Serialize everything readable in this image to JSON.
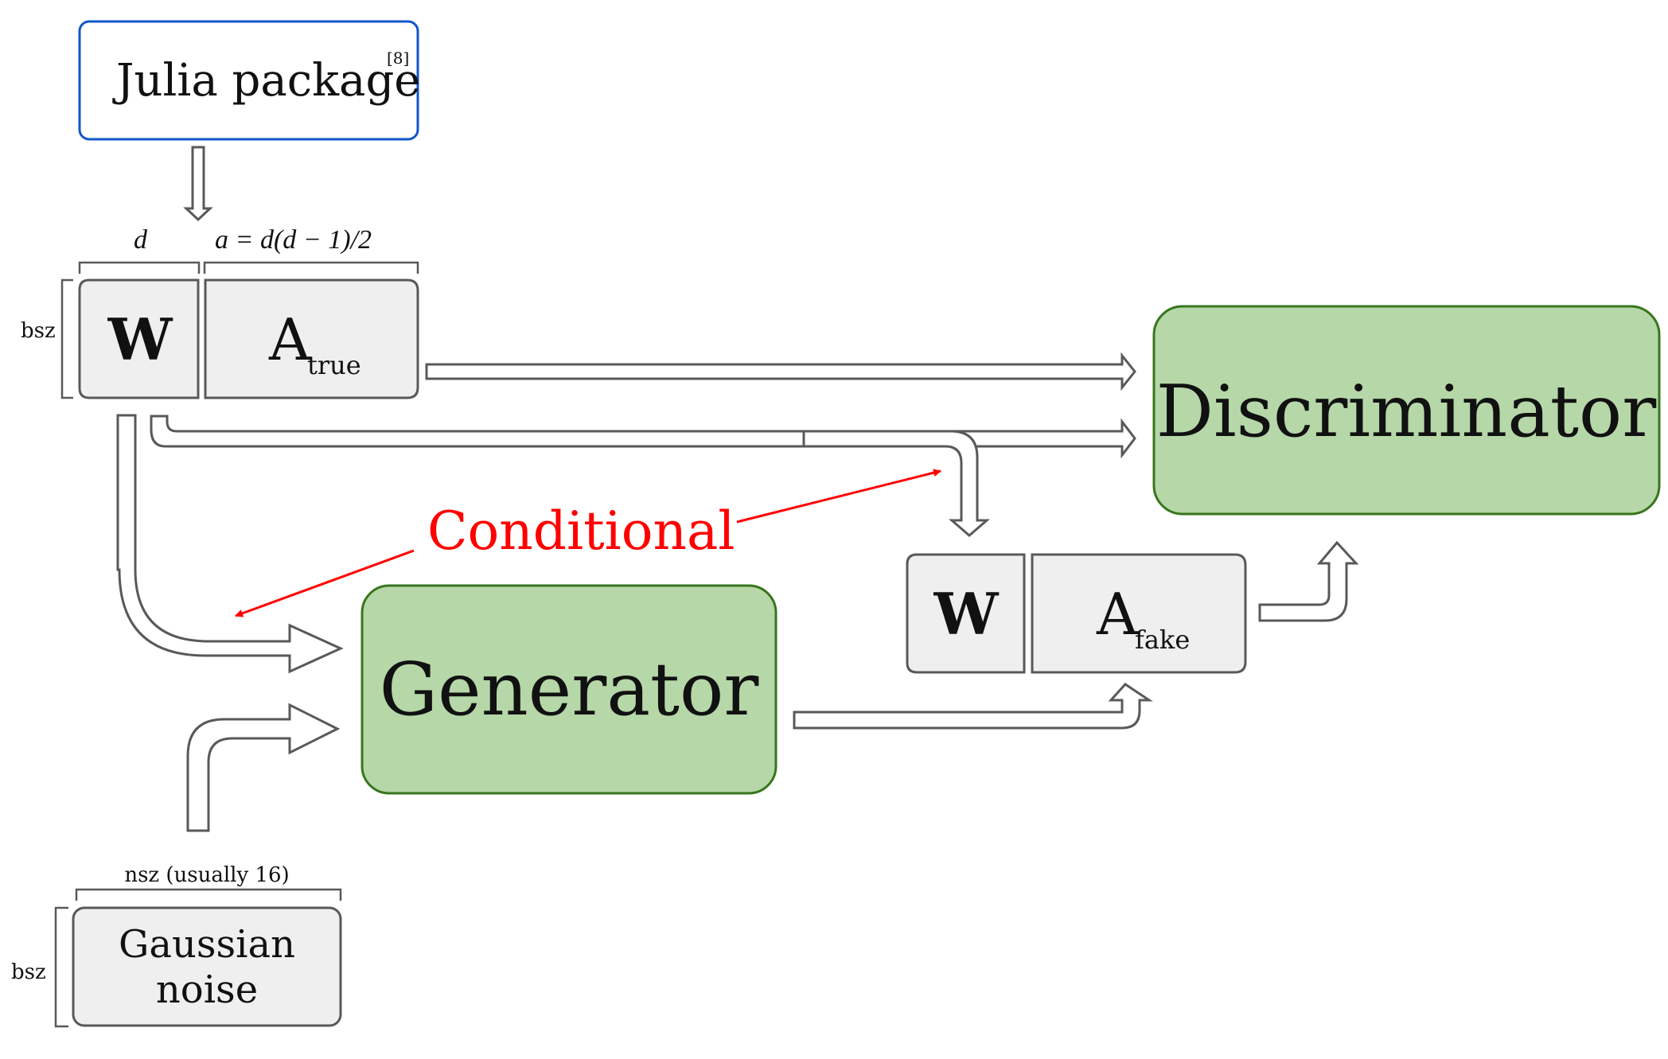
{
  "julia_box": {
    "label": "Julia package",
    "ref": "[8]"
  },
  "dims": {
    "d_label": "d",
    "a_label": "a = d(d − 1)/2",
    "bsz_label": "bsz",
    "nsz_label": "nsz (usually 16)"
  },
  "true_block": {
    "w_label": "W",
    "a_label": "A",
    "a_sub": "true"
  },
  "fake_block": {
    "w_label": "W",
    "a_label": "A",
    "a_sub": "fake"
  },
  "generator": {
    "label": "Generator"
  },
  "discriminator": {
    "label": "Discriminator"
  },
  "conditional": {
    "label": "Conditional"
  },
  "noise_box": {
    "line1": "Gaussian",
    "line2": "noise"
  },
  "colors": {
    "model_fill": "#b6d7a8",
    "model_stroke": "#38761d",
    "block_fill": "#efefef",
    "block_stroke": "#595959",
    "julia_stroke": "#1155cc",
    "conditional_red": "#ff0000"
  }
}
